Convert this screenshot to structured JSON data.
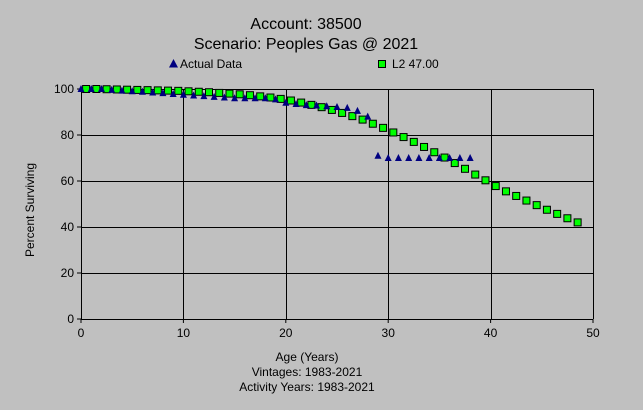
{
  "chart_data": {
    "type": "scatter",
    "title": "Account: 38500",
    "subtitle": "Scenario: Peoples Gas @ 2021",
    "xlabel": "Age (Years)",
    "ylabel": "Percent Surviving",
    "footer": [
      "Vintages: 1983-2021",
      "Activity Years: 1983-2021"
    ],
    "xlim": [
      0,
      50
    ],
    "ylim": [
      0,
      100
    ],
    "xticks": [
      0,
      10,
      20,
      30,
      40,
      50
    ],
    "yticks": [
      0,
      20,
      40,
      60,
      80,
      100
    ],
    "grid": true,
    "legend_position": "top",
    "colors": {
      "background": "#c0c0c0",
      "actual": "#000080",
      "fitted": "#00ff00",
      "fitted_edge": "#000000",
      "grid": "#000000"
    },
    "series": [
      {
        "name": "Actual Data",
        "marker": "triangle",
        "x": [
          0,
          1,
          2,
          3,
          4,
          5,
          6,
          7,
          8,
          9,
          10,
          11,
          12,
          13,
          14,
          15,
          16,
          17,
          18,
          19,
          20,
          21,
          22,
          23,
          24,
          25,
          26,
          27,
          28,
          29,
          30,
          31,
          32,
          33,
          34,
          35,
          36,
          37,
          38
        ],
        "y": [
          100,
          100,
          100,
          99.6,
          99.3,
          99,
          98.8,
          98.5,
          98.2,
          97.8,
          97.5,
          97.2,
          96.9,
          96.6,
          96.3,
          96,
          96,
          96,
          96,
          95.5,
          94,
          93.5,
          93,
          92.8,
          92.5,
          92.2,
          91.8,
          90.5,
          88,
          71,
          70,
          70,
          70,
          70,
          70,
          70,
          70,
          70,
          70
        ]
      },
      {
        "name": "L2 47.00",
        "marker": "square",
        "x": [
          0.5,
          1.5,
          2.5,
          3.5,
          4.5,
          5.5,
          6.5,
          7.5,
          8.5,
          9.5,
          10.5,
          11.5,
          12.5,
          13.5,
          14.5,
          15.5,
          16.5,
          17.5,
          18.5,
          19.5,
          20.5,
          21.5,
          22.5,
          23.5,
          24.5,
          25.5,
          26.5,
          27.5,
          28.5,
          29.5,
          30.5,
          31.5,
          32.5,
          33.5,
          34.5,
          35.5,
          36.5,
          37.5,
          38.5,
          39.5,
          40.5,
          41.5,
          42.5,
          43.5,
          44.5,
          45.5,
          46.5,
          47.5,
          48.5
        ],
        "y": [
          100,
          100,
          99.9,
          99.8,
          99.7,
          99.6,
          99.5,
          99.4,
          99.3,
          99.2,
          99.0,
          98.8,
          98.6,
          98.3,
          98.0,
          97.7,
          97.3,
          96.8,
          96.3,
          95.7,
          95.0,
          94.1,
          93.1,
          92.1,
          90.9,
          89.6,
          88.2,
          86.7,
          84.9,
          83.1,
          81.1,
          79.1,
          77.0,
          74.8,
          72.5,
          70.2,
          67.8,
          65.3,
          62.8,
          60.3,
          57.8,
          55.5,
          53.5,
          51.5,
          49.5,
          47.5,
          45.7,
          43.8,
          42.0
        ]
      }
    ]
  }
}
